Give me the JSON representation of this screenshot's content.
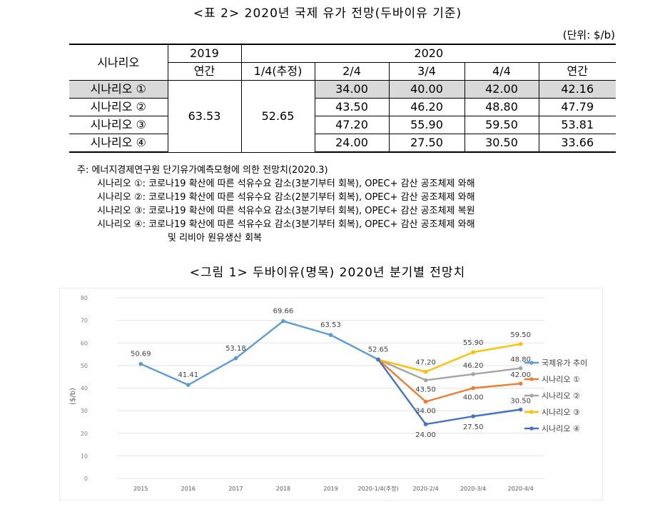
{
  "table_title": "<표 2> 2020년 국제 유가 전망(두바이유 기준)",
  "unit_label": "(단위: $/b)",
  "table": {
    "header_scenario": "시나리오",
    "header_2019": "2019",
    "header_2020": "2020",
    "sub_annual_2019": "연간",
    "sub_q1": "1/4(추정)",
    "sub_q2": "2/4",
    "sub_q3": "3/4",
    "sub_q4": "4/4",
    "sub_annual_2020": "연간",
    "merged_2019": "63.53",
    "merged_q1": "52.65",
    "rows": [
      {
        "name": "시나리오 ①",
        "q2": "34.00",
        "q3": "40.00",
        "q4": "42.00",
        "annual": "42.16"
      },
      {
        "name": "시나리오 ②",
        "q2": "43.50",
        "q3": "46.20",
        "q4": "48.80",
        "annual": "47.79"
      },
      {
        "name": "시나리오 ③",
        "q2": "47.20",
        "q3": "55.90",
        "q4": "59.50",
        "annual": "53.81"
      },
      {
        "name": "시나리오 ④",
        "q2": "24.00",
        "q3": "27.50",
        "q4": "30.50",
        "annual": "33.66"
      }
    ]
  },
  "notes": {
    "source": "주: 에너지경제연구원 단기유가예측모형에 의한 전망치(2020.3)",
    "s1": "시나리오 ①: 코로나19 확산에 따른 석유수요 감소(3분기부터 회복), OPEC+ 감산 공조체제 와해",
    "s2": "시나리오 ②: 코로나19 확산에 따른 석유수요 감소(2분기부터 회복), OPEC+ 감산 공조체제 와해",
    "s3": "시나리오 ③: 코로나19 확산에 따른 석유수요 감소(3분기부터 회복), OPEC+ 감산 공조체제 복원",
    "s4": "시나리오 ④: 코로나19 확산에 따른 석유수요 감소(3분기부터 회복), OPEC+ 감산 공조체제 와해",
    "s4_cont": "및 리비아 원유생산 회복"
  },
  "figure_title": "<그림 1> 두바이유(명목) 2020년 분기별 전망치",
  "chart_data": {
    "type": "line",
    "categories": [
      "2015",
      "2016",
      "2017",
      "2018",
      "2019",
      "2020-1/4(추정)",
      "2020-2/4",
      "2020-3/4",
      "2020-4/4"
    ],
    "ylabel": "($/b)",
    "ylim": [
      0,
      80
    ],
    "yticks": [
      "0",
      "10",
      "20",
      "30",
      "40",
      "50",
      "60",
      "70",
      "80"
    ],
    "legend_position": "right",
    "series": [
      {
        "name": "국제유가 추이",
        "color": "#5b9bd5",
        "values": [
          50.69,
          41.41,
          53.18,
          69.66,
          63.53,
          52.65,
          null,
          null,
          null
        ],
        "labels": [
          "50.69",
          "41.41",
          "53.18",
          "69.66",
          "63.53",
          "52.65",
          "",
          "",
          ""
        ]
      },
      {
        "name": "시나리오 ①",
        "color": "#ed7d31",
        "values": [
          null,
          null,
          null,
          null,
          null,
          52.65,
          34.0,
          40.0,
          42.0
        ],
        "labels": [
          "",
          "",
          "",
          "",
          "",
          "",
          "34.00",
          "40.00",
          "42.00"
        ]
      },
      {
        "name": "시나리오 ②",
        "color": "#a5a5a5",
        "values": [
          null,
          null,
          null,
          null,
          null,
          52.65,
          43.5,
          46.2,
          48.8
        ],
        "labels": [
          "",
          "",
          "",
          "",
          "",
          "",
          "43.50",
          "46.20",
          "48.80"
        ]
      },
      {
        "name": "시나리오 ③",
        "color": "#ffc000",
        "values": [
          null,
          null,
          null,
          null,
          null,
          52.65,
          47.2,
          55.9,
          59.5
        ],
        "labels": [
          "",
          "",
          "",
          "",
          "",
          "",
          "47.20",
          "55.90",
          "59.50"
        ]
      },
      {
        "name": "시나리오 ④",
        "color": "#4472c4",
        "values": [
          null,
          null,
          null,
          null,
          null,
          52.65,
          24.0,
          27.5,
          30.5
        ],
        "labels": [
          "",
          "",
          "",
          "",
          "",
          "",
          "24.00",
          "27.50",
          "30.50"
        ]
      }
    ]
  }
}
